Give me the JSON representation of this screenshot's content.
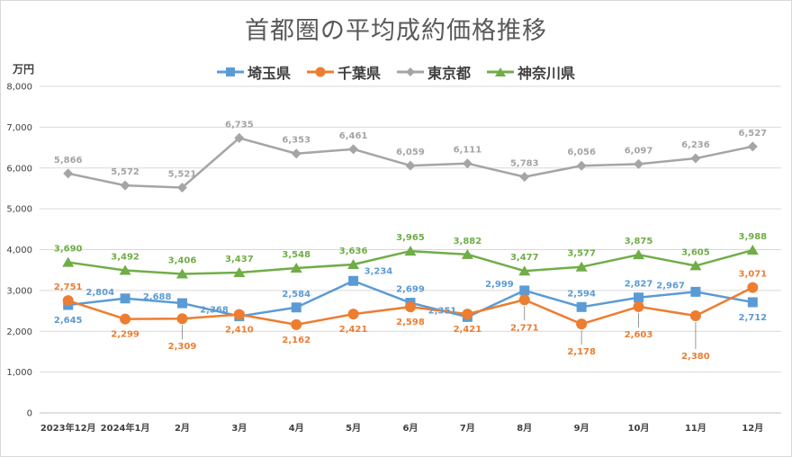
{
  "chart_data": {
    "type": "line",
    "title": "首都圏の平均成約価格推移",
    "ylabel": "万円",
    "ylim": [
      0,
      8000
    ],
    "y_ticks": [
      "0",
      "1,000",
      "2,000",
      "3,000",
      "4,000",
      "5,000",
      "6,000",
      "7,000",
      "8,000"
    ],
    "grid": true,
    "legend_position": "top",
    "categories": [
      "2023年12月",
      "2024年1月",
      "2月",
      "3月",
      "4月",
      "5月",
      "6月",
      "7月",
      "8月",
      "9月",
      "10月",
      "11月",
      "12月"
    ],
    "series": [
      {
        "name": "埼玉県",
        "color": "#5b9bd5",
        "marker": "square",
        "values": [
          2645,
          2804,
          2688,
          2368,
          2584,
          3234,
          2699,
          2351,
          2999,
          2594,
          2827,
          2967,
          2712
        ],
        "labels": [
          "2,645",
          "2,804",
          "2,688",
          "2,368",
          "2,584",
          "3,234",
          "2,699",
          "2,351",
          "2,999",
          "2,594",
          "2,827",
          "2,967",
          "2,712"
        ]
      },
      {
        "name": "千葉県",
        "color": "#ed7d31",
        "marker": "circle",
        "values": [
          2751,
          2299,
          2309,
          2410,
          2162,
          2421,
          2598,
          2421,
          2771,
          2178,
          2603,
          2380,
          3071
        ],
        "labels": [
          "2,751",
          "2,299",
          "2,309",
          "2,410",
          "2,162",
          "2,421",
          "2,598",
          "2,421",
          "2,771",
          "2,178",
          "2,603",
          "2,380",
          "3,071"
        ]
      },
      {
        "name": "東京都",
        "color": "#a5a5a5",
        "marker": "diamond",
        "values": [
          5866,
          5572,
          5521,
          6735,
          6353,
          6461,
          6059,
          6111,
          5783,
          6056,
          6097,
          6236,
          6527
        ],
        "labels": [
          "5,866",
          "5,572",
          "5,521",
          "6,735",
          "6,353",
          "6,461",
          "6,059",
          "6,111",
          "5,783",
          "6,056",
          "6,097",
          "6,236",
          "6,527"
        ]
      },
      {
        "name": "神奈川県",
        "color": "#70ad47",
        "marker": "triangle",
        "values": [
          3690,
          3492,
          3406,
          3437,
          3548,
          3636,
          3965,
          3882,
          3477,
          3577,
          3875,
          3605,
          3988
        ],
        "labels": [
          "3,690",
          "3,492",
          "3,406",
          "3,437",
          "3,548",
          "3,636",
          "3,965",
          "3,882",
          "3,477",
          "3,577",
          "3,875",
          "3,605",
          "3,988"
        ]
      }
    ]
  }
}
